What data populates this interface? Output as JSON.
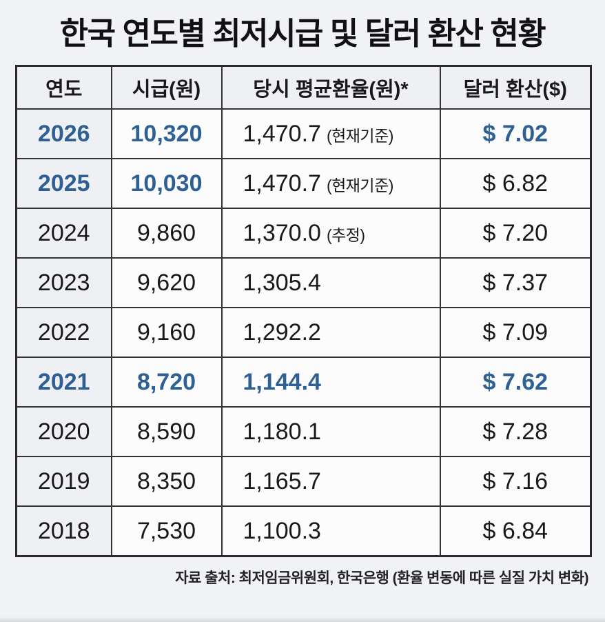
{
  "title": "한국 연도별 최저시급 및 달러 환산 현황",
  "colors": {
    "accent_blue": "#2e6094",
    "text_black": "#19191b",
    "page_background": "#f1f2f5",
    "tinted_cell_background": "#eef0f4",
    "cell_background": "#fcfcfd",
    "border": "#333336"
  },
  "table": {
    "columns": [
      "연도",
      "시급(원)",
      "당시 평균환율(원)*",
      "달러 환산($)"
    ],
    "rows": [
      {
        "year": "2026",
        "wage": "10,320",
        "rate": "1,470.7",
        "rate_note": "(현재기준)",
        "usd": "$ 7.02",
        "emphasis": [
          "year",
          "wage",
          "usd"
        ]
      },
      {
        "year": "2025",
        "wage": "10,030",
        "rate": "1,470.7",
        "rate_note": "(현재기준)",
        "usd": "$ 6.82",
        "emphasis": [
          "year",
          "wage"
        ]
      },
      {
        "year": "2024",
        "wage": "9,860",
        "rate": "1,370.0",
        "rate_note": "(추정)",
        "usd": "$ 7.20",
        "emphasis": []
      },
      {
        "year": "2023",
        "wage": "9,620",
        "rate": "1,305.4",
        "rate_note": "",
        "usd": "$ 7.37",
        "emphasis": []
      },
      {
        "year": "2022",
        "wage": "9,160",
        "rate": "1,292.2",
        "rate_note": "",
        "usd": "$ 7.09",
        "emphasis": []
      },
      {
        "year": "2021",
        "wage": "8,720",
        "rate": "1,144.4",
        "rate_note": "",
        "usd": "$ 7.62",
        "emphasis": [
          "year",
          "wage",
          "rate",
          "usd"
        ]
      },
      {
        "year": "2020",
        "wage": "8,590",
        "rate": "1,180.1",
        "rate_note": "",
        "usd": "$ 7.28",
        "emphasis": []
      },
      {
        "year": "2019",
        "wage": "8,350",
        "rate": "1,165.7",
        "rate_note": "",
        "usd": "$ 7.16",
        "emphasis": []
      },
      {
        "year": "2018",
        "wage": "7,530",
        "rate": "1,100.3",
        "rate_note": "",
        "usd": "$ 6.84",
        "emphasis": []
      }
    ]
  },
  "footer": "자료 출처: 최저임금위원회, 한국은행 (환율 변동에 따른 실질 가치 변화)",
  "chart_data": {
    "type": "table",
    "title": "한국 연도별 최저시급 및 달러 환산 현황",
    "columns": [
      "연도",
      "시급(원)",
      "당시 평균환율(원)*",
      "달러 환산($)"
    ],
    "rows": [
      [
        2026,
        10320,
        1470.7,
        7.02
      ],
      [
        2025,
        10030,
        1470.7,
        6.82
      ],
      [
        2024,
        9860,
        1370.0,
        7.2
      ],
      [
        2023,
        9620,
        1305.4,
        7.37
      ],
      [
        2022,
        9160,
        1292.2,
        7.09
      ],
      [
        2021,
        8720,
        1144.4,
        7.62
      ],
      [
        2020,
        8590,
        1180.1,
        7.28
      ],
      [
        2019,
        8350,
        1165.7,
        7.16
      ],
      [
        2018,
        7530,
        1100.3,
        6.84
      ]
    ],
    "rate_notes": {
      "2026": "현재기준",
      "2025": "현재기준",
      "2024": "추정"
    },
    "highlighted_years": [
      2026,
      2025,
      2021
    ],
    "source": "자료 출처: 최저임금위원회, 한국은행 (환율 변동에 따른 실질 가치 변화)"
  }
}
